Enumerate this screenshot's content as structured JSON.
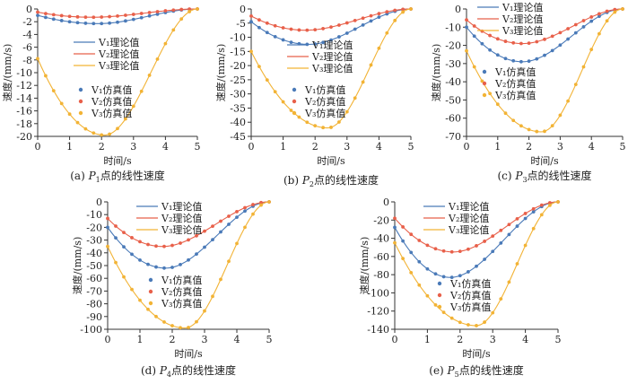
{
  "colors": {
    "v1": "#4a7ab8",
    "v2": "#e8604a",
    "v3": "#f2b335",
    "axis": "#333333"
  },
  "legend_theory_suffix": "理论值",
  "legend_sim_suffix": "仿真值",
  "chart_data": [
    {
      "type": "line",
      "caption_prefix": "(a)  ",
      "caption_point": "P",
      "caption_sub": "1",
      "caption_suffix": "点的线性速度",
      "xlabel": "时间/s",
      "ylabel": "速度/(mm/s)",
      "xlim": [
        0,
        5
      ],
      "ylim": [
        -20,
        0
      ],
      "x_ticks": [
        0,
        1,
        2,
        3,
        4,
        5
      ],
      "y_ticks": [
        -20,
        -18,
        -16,
        -14,
        -12,
        -10,
        -8,
        -6,
        -4,
        -2,
        0
      ],
      "series": [
        {
          "name": "V₁",
          "theory_min_x": 1.9,
          "theory_min_y": -2.3,
          "theory_start_y": -1.0
        },
        {
          "name": "V₂",
          "theory_min_x": 1.7,
          "theory_min_y": -1.3,
          "theory_start_y": -0.5
        },
        {
          "name": "V₃",
          "theory_min_x": 2.1,
          "theory_min_y": -19.8,
          "theory_start_y": -7.8
        }
      ]
    },
    {
      "type": "line",
      "caption_prefix": "(b)  ",
      "caption_point": "P",
      "caption_sub": "2",
      "caption_suffix": "点的线性速度",
      "xlabel": "时间/s",
      "ylabel": "速度/(mm/s)",
      "xlim": [
        0,
        5
      ],
      "ylim": [
        -45,
        0
      ],
      "x_ticks": [
        0,
        1,
        2,
        3,
        4,
        5
      ],
      "y_ticks": [
        -45,
        -40,
        -35,
        -30,
        -25,
        -20,
        -15,
        -10,
        -5,
        0
      ],
      "series": [
        {
          "name": "V₁",
          "theory_min_x": 1.8,
          "theory_min_y": -12.5,
          "theory_start_y": -4.5
        },
        {
          "name": "V₂",
          "theory_min_x": 1.7,
          "theory_min_y": -7.5,
          "theory_start_y": -2.5
        },
        {
          "name": "V₃",
          "theory_min_x": 2.4,
          "theory_min_y": -42.0,
          "theory_start_y": -15.0
        }
      ]
    },
    {
      "type": "line",
      "caption_prefix": "(c)  ",
      "caption_point": "P",
      "caption_sub": "3",
      "caption_suffix": "点的线性速度",
      "xlabel": "时间/s",
      "ylabel": "速度/(mm/s)",
      "xlim": [
        0,
        5
      ],
      "ylim": [
        -70,
        0
      ],
      "x_ticks": [
        0,
        1,
        2,
        3,
        4,
        5
      ],
      "y_ticks": [
        -70,
        -60,
        -50,
        -40,
        -30,
        -20,
        -10,
        0
      ],
      "series": [
        {
          "name": "V₁",
          "theory_min_x": 1.8,
          "theory_min_y": -29.0,
          "theory_start_y": -10.0
        },
        {
          "name": "V₂",
          "theory_min_x": 1.8,
          "theory_min_y": -19.0,
          "theory_start_y": -6.0
        },
        {
          "name": "V₃",
          "theory_min_x": 2.4,
          "theory_min_y": -67.5,
          "theory_start_y": -23.0
        }
      ]
    },
    {
      "type": "line",
      "caption_prefix": "(d)  ",
      "caption_point": "P",
      "caption_sub": "4",
      "caption_suffix": "点的线性速度",
      "xlabel": "时间/s",
      "ylabel": "速度/(mm/s)",
      "xlim": [
        0,
        5
      ],
      "ylim": [
        -100,
        0
      ],
      "x_ticks": [
        0,
        1,
        2,
        3,
        4,
        5
      ],
      "y_ticks": [
        -100,
        -90,
        -80,
        -70,
        -60,
        -50,
        -40,
        -30,
        -20,
        -10,
        0
      ],
      "series": [
        {
          "name": "V₁",
          "theory_min_x": 1.8,
          "theory_min_y": -52.0,
          "theory_start_y": -20.0
        },
        {
          "name": "V₂",
          "theory_min_x": 1.7,
          "theory_min_y": -35.0,
          "theory_start_y": -13.0
        },
        {
          "name": "V₃",
          "theory_min_x": 2.4,
          "theory_min_y": -99.0,
          "theory_start_y": -35.0
        }
      ]
    },
    {
      "type": "line",
      "caption_prefix": "(e)  ",
      "caption_point": "P",
      "caption_sub": "5",
      "caption_suffix": "点的线性速度",
      "xlabel": "时间/s",
      "ylabel": "速度/(mm/s)",
      "xlim": [
        0,
        5
      ],
      "ylim": [
        -140,
        0
      ],
      "x_ticks": [
        0,
        1,
        2,
        3,
        4,
        5
      ],
      "y_ticks": [
        -140,
        -120,
        -100,
        -80,
        -60,
        -40,
        -20,
        0
      ],
      "series": [
        {
          "name": "V₁",
          "theory_min_x": 1.7,
          "theory_min_y": -83.0,
          "theory_start_y": -28.0
        },
        {
          "name": "V₂",
          "theory_min_x": 1.8,
          "theory_min_y": -55.0,
          "theory_start_y": -18.0
        },
        {
          "name": "V₃",
          "theory_min_x": 2.5,
          "theory_min_y": -136.0,
          "theory_start_y": -45.0
        }
      ]
    }
  ]
}
